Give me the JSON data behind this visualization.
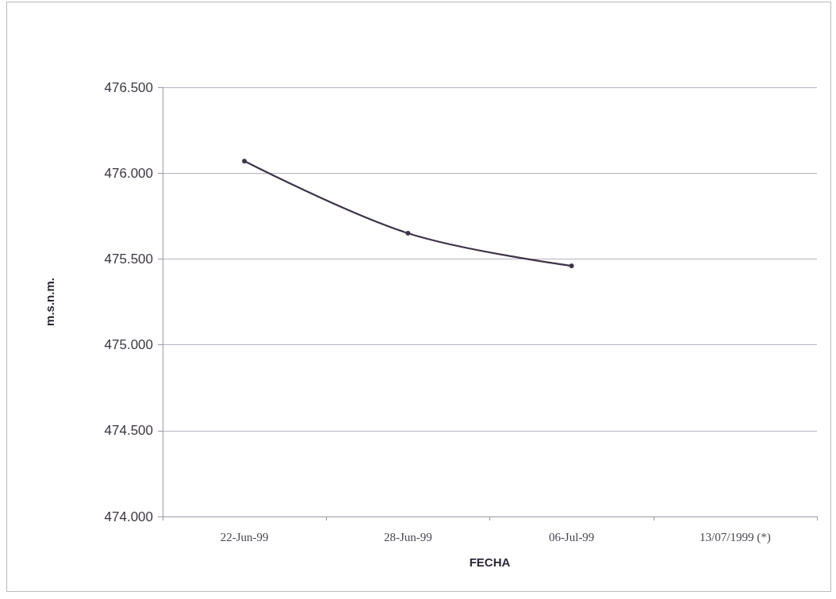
{
  "chart_data": {
    "type": "line",
    "xlabel": "FECHA",
    "ylabel": "m.s.n.m.",
    "categories": [
      "22-Jun-99",
      "28-Jun-99",
      "06-Jul-99",
      "13/07/1999 (*)"
    ],
    "series": [
      {
        "color": "#3d3447",
        "values": [
          476.07,
          475.65,
          475.46,
          null
        ]
      }
    ],
    "ylim": [
      474,
      476.5
    ],
    "yticks": [
      {
        "value": 474,
        "label": "474.000"
      },
      {
        "value": 474.5,
        "label": "474.500"
      },
      {
        "value": 475,
        "label": "475.000"
      },
      {
        "value": 475.5,
        "label": "475.500"
      },
      {
        "value": 476,
        "label": "476.000"
      },
      {
        "value": 476.5,
        "label": "476.500"
      }
    ],
    "grid": "y",
    "marker": "circle",
    "line_style": "solid"
  }
}
